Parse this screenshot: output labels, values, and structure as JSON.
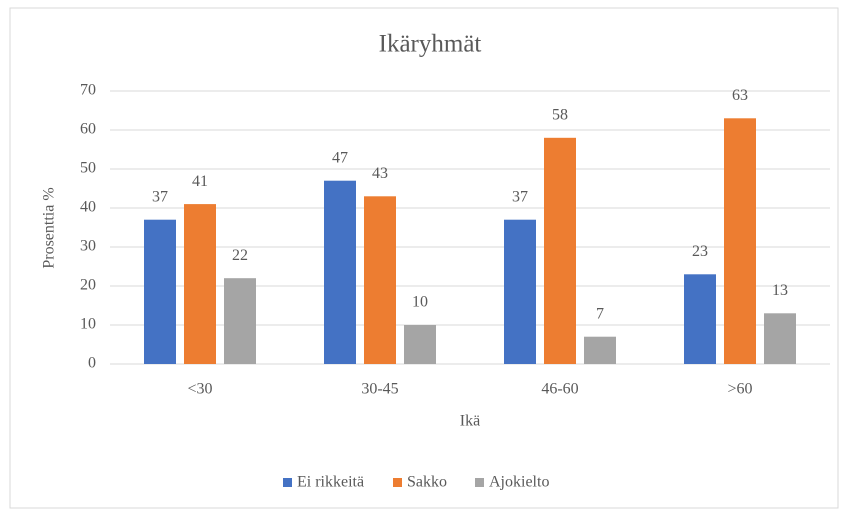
{
  "chart_data": {
    "type": "bar",
    "title": "Ikäryhmät",
    "x_label": "Ikä",
    "y_label": "Prosenttia %",
    "categories": [
      "<30",
      "30-45",
      "46-60",
      ">60"
    ],
    "series": [
      {
        "name": "Ei rikkeitä",
        "color": "#4472c4",
        "values": [
          37,
          47,
          37,
          23
        ]
      },
      {
        "name": "Sakko",
        "color": "#ed7d31",
        "values": [
          41,
          43,
          58,
          63
        ]
      },
      {
        "name": "Ajokielto",
        "color": "#a5a5a5",
        "values": [
          22,
          10,
          7,
          13
        ]
      }
    ],
    "ylim": [
      0,
      70
    ],
    "yticks": [
      0,
      10,
      20,
      30,
      40,
      50,
      60,
      70
    ],
    "grid": true,
    "legend": "bottom"
  }
}
